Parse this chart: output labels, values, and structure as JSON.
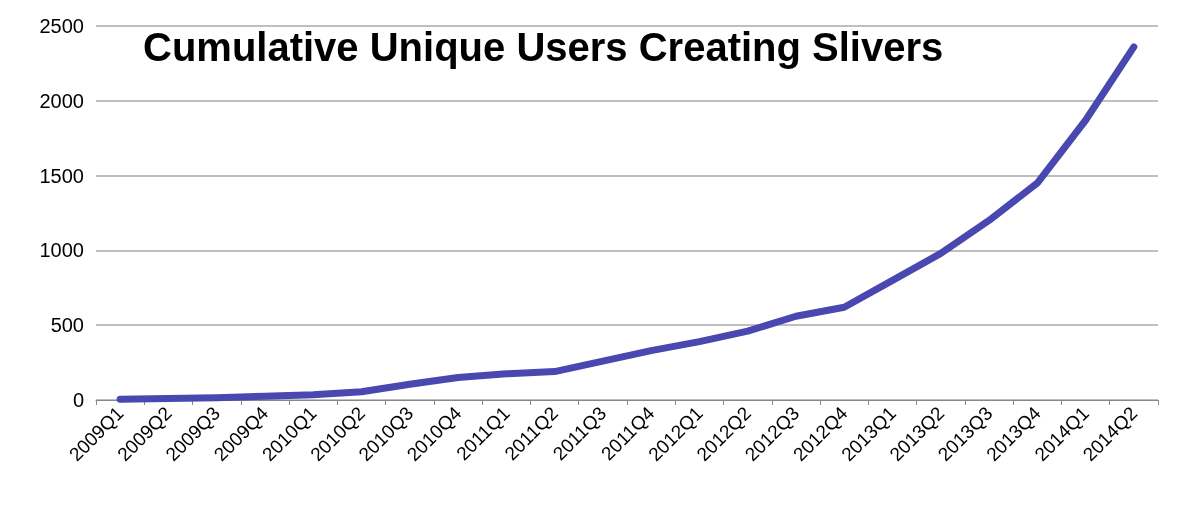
{
  "chart_data": {
    "type": "line",
    "title": "Cumulative Unique Users Creating Slivers",
    "categories": [
      "2009Q1",
      "2009Q2",
      "2009Q3",
      "2009Q4",
      "2010Q1",
      "2010Q2",
      "2010Q3",
      "2010Q4",
      "2011Q1",
      "2011Q2",
      "2011Q3",
      "2011Q4",
      "2012Q1",
      "2012Q2",
      "2012Q3",
      "2012Q4",
      "2013Q1",
      "2013Q2",
      "2013Q3",
      "2013Q4",
      "2014Q1",
      "2014Q2"
    ],
    "series": [
      {
        "color": "#4848b0",
        "values": [
          5,
          10,
          15,
          25,
          35,
          55,
          105,
          150,
          175,
          190,
          260,
          330,
          390,
          460,
          560,
          620,
          800,
          980,
          1200,
          1450,
          1870,
          2360
        ]
      }
    ],
    "ylim": [
      0,
      2500
    ],
    "yticks": [
      0,
      500,
      1000,
      1500,
      2000,
      2500
    ],
    "grid": "y",
    "marker": "none",
    "line_style": "solid"
  }
}
